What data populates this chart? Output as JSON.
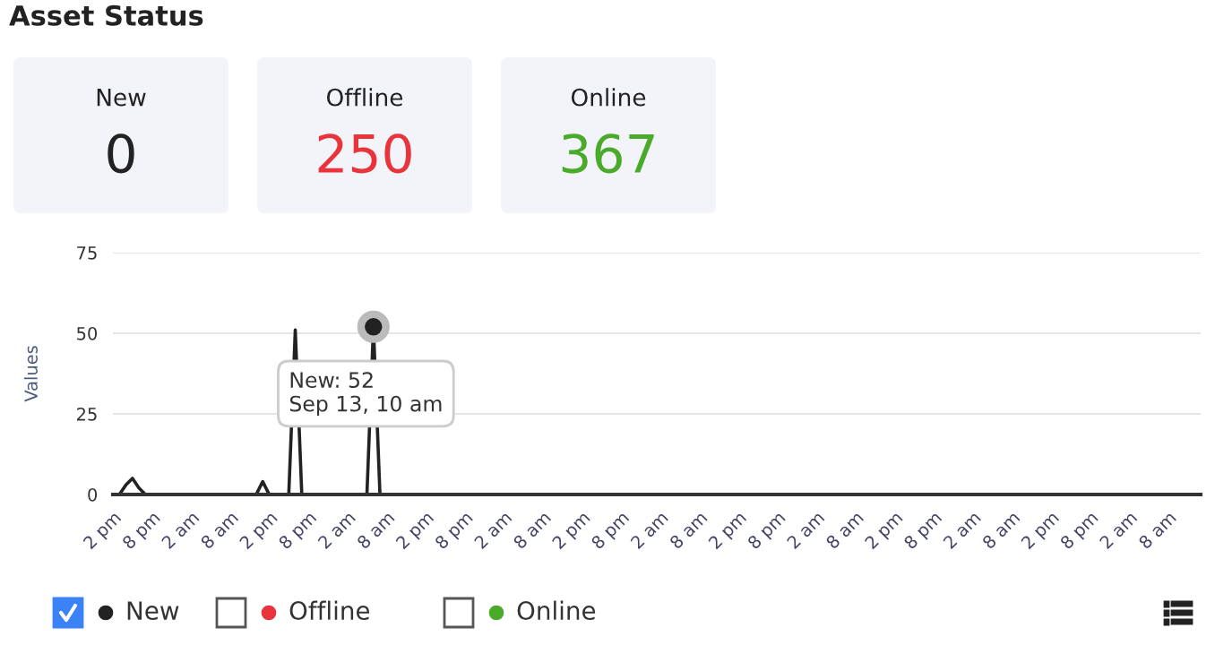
{
  "chart_data": [
    {
      "type": "other",
      "title": "Asset Status",
      "annotations": [
        "New",
        "0",
        "Offline",
        "250",
        "Online",
        "367"
      ],
      "colors": [
        "#222222",
        "#e8343a",
        "#4aaa2a"
      ]
    },
    {
      "type": "line",
      "ylabel": "Values",
      "marker": "none",
      "grid": "y",
      "legend": "bottom",
      "ylim": [
        0,
        75
      ],
      "yticks": [
        0,
        25,
        50,
        75
      ],
      "categories": [
        "2 pm",
        null,
        null,
        null,
        null,
        null,
        "8 pm",
        null,
        null,
        null,
        null,
        null,
        "2 am",
        null,
        null,
        null,
        null,
        null,
        "8 am",
        null,
        null,
        null,
        null,
        null,
        "2 pm",
        null,
        null,
        null,
        null,
        null,
        "8 pm",
        null,
        null,
        null,
        null,
        null,
        "2 am",
        null,
        null,
        null,
        null,
        null,
        "8 am",
        null,
        null,
        null,
        null,
        null,
        "2 pm",
        null,
        null,
        null,
        null,
        null,
        "8 pm",
        null,
        null,
        null,
        null,
        null,
        "2 am",
        null,
        null,
        null,
        null,
        null,
        "8 am",
        null,
        null,
        null,
        null,
        null,
        "2 pm",
        null,
        null,
        null,
        null,
        null,
        "8 pm",
        null,
        null,
        null,
        null,
        null,
        "2 am",
        null,
        null,
        null,
        null,
        null,
        "8 am",
        null,
        null,
        null,
        null,
        null,
        "2 pm",
        null,
        null,
        null,
        null,
        null,
        "8 pm",
        null,
        null,
        null,
        null,
        null,
        "2 am",
        null,
        null,
        null,
        null,
        null,
        "8 am",
        null,
        null,
        null,
        null,
        null,
        "2 pm",
        null,
        null,
        null,
        null,
        null,
        "8 pm",
        null,
        null,
        null,
        null,
        null,
        "2 am",
        null,
        null,
        null,
        null,
        null,
        "8 am",
        null,
        null,
        null,
        null,
        null,
        "2 pm",
        null,
        null,
        null,
        null,
        null,
        "8 pm",
        null,
        null,
        null,
        null,
        null,
        "2 am",
        null,
        null,
        null,
        null,
        null,
        "8 am",
        null,
        null,
        null,
        null,
        null
      ],
      "series": [
        {
          "name": "New",
          "color": "#222222",
          "values": [
            0,
            0,
            3,
            5,
            2,
            0,
            0,
            0,
            0,
            0,
            0,
            0,
            0,
            0,
            0,
            0,
            0,
            0,
            0,
            0,
            0,
            0,
            0,
            4,
            0,
            0,
            0,
            0,
            51,
            0,
            0,
            0,
            0,
            0,
            0,
            0,
            0,
            0,
            0,
            0,
            52,
            0,
            0,
            0,
            0,
            0,
            0,
            0,
            0,
            0,
            0,
            0,
            0,
            0,
            0,
            0,
            0,
            0,
            0,
            0,
            0,
            0,
            0,
            0,
            0,
            0,
            0,
            0,
            0,
            0,
            0,
            0,
            0,
            0,
            0,
            0,
            0,
            0,
            0,
            0,
            0,
            0,
            0,
            0,
            0,
            0,
            0,
            0,
            0,
            0,
            0,
            0,
            0,
            0,
            0,
            0,
            0,
            0,
            0,
            0,
            0,
            0,
            0,
            0,
            0,
            0,
            0,
            0,
            0,
            0,
            0,
            0,
            0,
            0,
            0,
            0,
            0,
            0,
            0,
            0,
            0,
            0,
            0,
            0,
            0,
            0,
            0,
            0,
            0,
            0,
            0,
            0,
            0,
            0,
            0,
            0,
            0,
            0,
            0,
            0,
            0,
            0,
            0,
            0,
            0,
            0,
            0,
            0,
            0,
            0,
            0,
            0,
            0,
            0,
            0,
            0,
            0,
            0,
            0,
            0,
            0,
            0,
            0,
            0,
            0,
            0,
            0,
            0
          ]
        },
        {
          "name": "Offline",
          "color": "#e8343a",
          "values": [
            null,
            null,
            null,
            null,
            null,
            null,
            null,
            null,
            null,
            null,
            null,
            null,
            null,
            null,
            null,
            null,
            null,
            null,
            null,
            null,
            null,
            null,
            null,
            null,
            null,
            null,
            null,
            null,
            null,
            null,
            null,
            null,
            null,
            null,
            null,
            null,
            null,
            null,
            null,
            null,
            null,
            null,
            null,
            null,
            null,
            null,
            null,
            null,
            null,
            null,
            null,
            null,
            null,
            null,
            null,
            null,
            null,
            null,
            null,
            null,
            null,
            null,
            null,
            null,
            null,
            null,
            null,
            null,
            null,
            null,
            null,
            null,
            null,
            null,
            null,
            null,
            null,
            null,
            null,
            null,
            null,
            null,
            null,
            null,
            null,
            null,
            null,
            null,
            null,
            null,
            null,
            null,
            null,
            null,
            null,
            null,
            null,
            null,
            null,
            null,
            null,
            null,
            null,
            null,
            null,
            null,
            null,
            null,
            null,
            null,
            null,
            null,
            null,
            null,
            null,
            null,
            null,
            null,
            null,
            null,
            null,
            null,
            null,
            null,
            null,
            null,
            null,
            null,
            null,
            null,
            null,
            null,
            null,
            null,
            null,
            null,
            null,
            null,
            null,
            null,
            null,
            null,
            null,
            null,
            null,
            null,
            null,
            null,
            null,
            null,
            null,
            null,
            null,
            null,
            null,
            null,
            null,
            null,
            null,
            null,
            null,
            null,
            null,
            null,
            null,
            null,
            null,
            null
          ]
        },
        {
          "name": "Online",
          "color": "#4aaa2a",
          "values": [
            null,
            null,
            null,
            null,
            null,
            null,
            null,
            null,
            null,
            null,
            null,
            null,
            null,
            null,
            null,
            null,
            null,
            null,
            null,
            null,
            null,
            null,
            null,
            null,
            null,
            null,
            null,
            null,
            null,
            null,
            null,
            null,
            null,
            null,
            null,
            null,
            null,
            null,
            null,
            null,
            null,
            null,
            null,
            null,
            null,
            null,
            null,
            null,
            null,
            null,
            null,
            null,
            null,
            null,
            null,
            null,
            null,
            null,
            null,
            null,
            null,
            null,
            null,
            null,
            null,
            null,
            null,
            null,
            null,
            null,
            null,
            null,
            null,
            null,
            null,
            null,
            null,
            null,
            null,
            null,
            null,
            null,
            null,
            null,
            null,
            null,
            null,
            null,
            null,
            null,
            null,
            null,
            null,
            null,
            null,
            null,
            null,
            null,
            null,
            null,
            null,
            null,
            null,
            null,
            null,
            null,
            null,
            null,
            null,
            null,
            null,
            null,
            null,
            null,
            null,
            null,
            null,
            null,
            null,
            null,
            null,
            null,
            null,
            null,
            null,
            null,
            null,
            null,
            null,
            null,
            null,
            null,
            null,
            null,
            null,
            null,
            null,
            null,
            null,
            null,
            null,
            null,
            null,
            null,
            null,
            null,
            null,
            null,
            null,
            null,
            null,
            null,
            null,
            null,
            null,
            null,
            null,
            null,
            null,
            null,
            null,
            null,
            null,
            null,
            null,
            null,
            null,
            null
          ]
        }
      ],
      "annotations": [
        {
          "text": "New: 52\nSep 13, 10 am",
          "y": 52
        }
      ]
    }
  ]
}
